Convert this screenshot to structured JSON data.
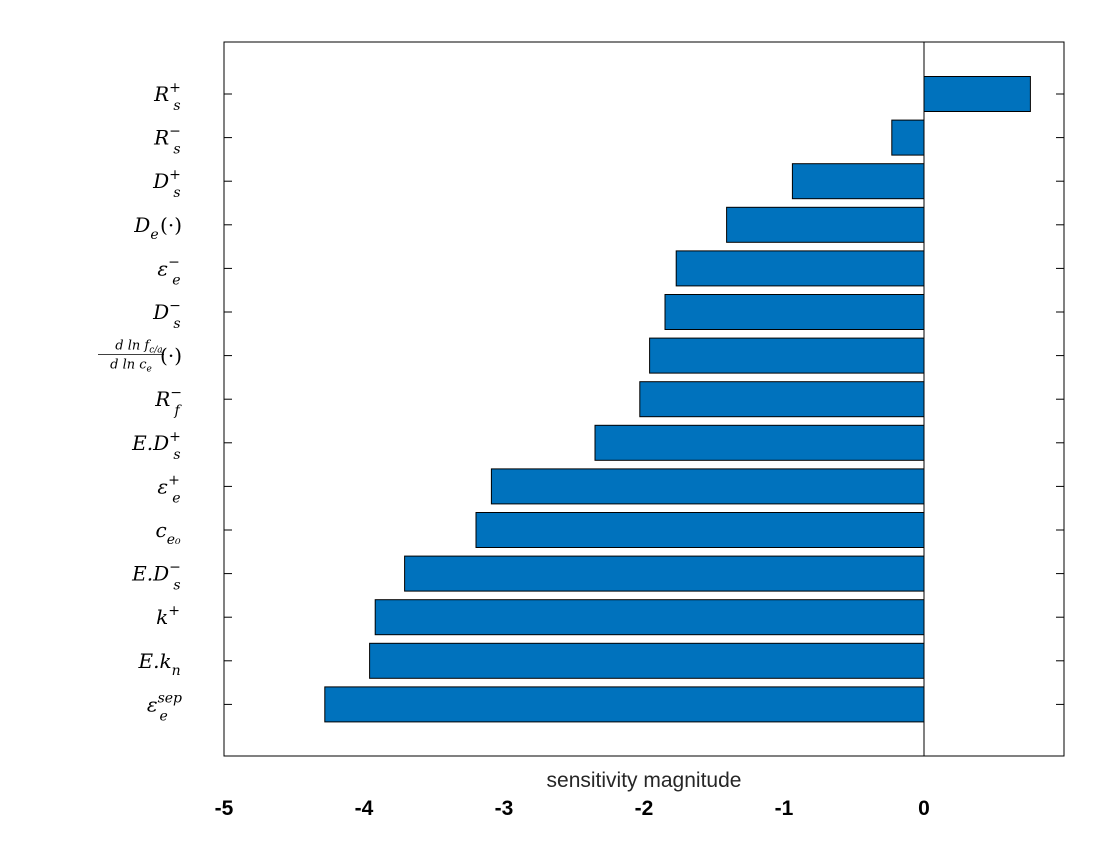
{
  "chart_data": {
    "type": "bar",
    "orientation": "horizontal",
    "title": "",
    "xlabel": "sensitivity magnitude",
    "ylabel": "",
    "xlim": [
      -5,
      1
    ],
    "xticks": [
      "-5",
      "-4",
      "-3",
      "-2",
      "-1",
      "0"
    ],
    "grid": false,
    "legend": "none",
    "bar_color": "#0072BD",
    "categories": [
      "R_s^+",
      "R_s^-",
      "D_s^+",
      "D_e(·)",
      "ε_e^-",
      "D_s^-",
      "d ln f_c/a / d ln c_e (·)",
      "R_f^-",
      "E.D_s^+",
      "ε_e^+",
      "c_e0",
      "E.D_s^-",
      "k^+",
      "E.k_n",
      "ε_e^sep"
    ],
    "values": [
      0.76,
      -0.23,
      -0.94,
      -1.41,
      -1.77,
      -1.85,
      -1.96,
      -2.03,
      -2.35,
      -3.09,
      -3.2,
      -3.71,
      -3.92,
      -3.96,
      -4.28
    ]
  }
}
